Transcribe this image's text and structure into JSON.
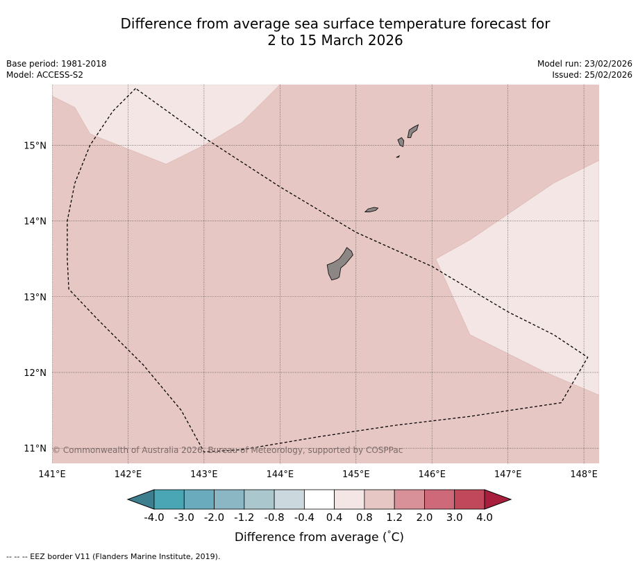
{
  "title": {
    "line1": "Difference from average sea surface temperature forecast for",
    "line2": "2 to 15 March 2026"
  },
  "meta": {
    "base_period": "Base period: 1981-2018",
    "model": "Model: ACCESS-S2",
    "model_run": "Model run: 23/02/2026",
    "issued": "Issued: 25/02/2026"
  },
  "map": {
    "lon_range": [
      141.0,
      148.2
    ],
    "lat_range": [
      10.8,
      15.8
    ],
    "lon_ticks": [
      141,
      142,
      143,
      144,
      145,
      146,
      147,
      148
    ],
    "lon_tick_labels": [
      "141°E",
      "142°E",
      "143°E",
      "144°E",
      "145°E",
      "146°E",
      "147°E",
      "148°E"
    ],
    "lat_ticks": [
      11,
      12,
      13,
      14,
      15
    ],
    "lat_tick_labels": [
      "11°N",
      "12°N",
      "13°N",
      "14°N",
      "15°N"
    ],
    "background_category": "0.8 to 1.2",
    "copyright": "© Commonwealth of Australia 2026, Bureau of Meteorology, supported by COSPPac",
    "regions": [
      {
        "name": "cooler-patch-northwest",
        "category": "0.4 to 0.8",
        "polygon": [
          [
            141.0,
            15.8
          ],
          [
            142.5,
            15.8
          ],
          [
            144.0,
            15.8
          ],
          [
            143.5,
            15.3
          ],
          [
            143.0,
            15.0
          ],
          [
            142.5,
            14.75
          ],
          [
            141.5,
            15.15
          ],
          [
            141.3,
            15.5
          ],
          [
            141.0,
            15.65
          ]
        ]
      },
      {
        "name": "cooler-patch-east",
        "category": "0.4 to 0.8",
        "polygon": [
          [
            148.2,
            14.8
          ],
          [
            147.6,
            14.5
          ],
          [
            146.5,
            13.75
          ],
          [
            146.05,
            13.5
          ],
          [
            146.5,
            12.5
          ],
          [
            147.5,
            12.0
          ],
          [
            148.2,
            11.7
          ]
        ]
      }
    ],
    "islands": [
      {
        "name": "Guam",
        "polygon": [
          [
            144.68,
            13.22
          ],
          [
            144.64,
            13.3
          ],
          [
            144.62,
            13.42
          ],
          [
            144.7,
            13.45
          ],
          [
            144.78,
            13.5
          ],
          [
            144.84,
            13.58
          ],
          [
            144.88,
            13.65
          ],
          [
            144.94,
            13.6
          ],
          [
            144.96,
            13.55
          ],
          [
            144.86,
            13.43
          ],
          [
            144.8,
            13.38
          ],
          [
            144.78,
            13.26
          ],
          [
            144.75,
            13.24
          ]
        ]
      },
      {
        "name": "Rota",
        "polygon": [
          [
            145.12,
            14.12
          ],
          [
            145.16,
            14.16
          ],
          [
            145.24,
            14.18
          ],
          [
            145.29,
            14.17
          ],
          [
            145.26,
            14.14
          ],
          [
            145.18,
            14.12
          ]
        ]
      },
      {
        "name": "Tinian",
        "polygon": [
          [
            145.58,
            15.0
          ],
          [
            145.55,
            15.07
          ],
          [
            145.6,
            15.1
          ],
          [
            145.63,
            15.06
          ],
          [
            145.62,
            14.98
          ]
        ]
      },
      {
        "name": "Saipan",
        "polygon": [
          [
            145.68,
            15.1
          ],
          [
            145.7,
            15.2
          ],
          [
            145.76,
            15.24
          ],
          [
            145.82,
            15.27
          ],
          [
            145.8,
            15.2
          ],
          [
            145.74,
            15.16
          ],
          [
            145.72,
            15.1
          ]
        ]
      },
      {
        "name": "Aguijan",
        "polygon": [
          [
            145.53,
            14.84
          ],
          [
            145.57,
            14.86
          ],
          [
            145.56,
            14.84
          ]
        ]
      }
    ],
    "eez_border": [
      [
        142.1,
        15.75
      ],
      [
        141.8,
        15.45
      ],
      [
        141.5,
        15.0
      ],
      [
        141.3,
        14.5
      ],
      [
        141.2,
        14.0
      ],
      [
        141.2,
        13.5
      ],
      [
        141.22,
        13.1
      ],
      [
        141.6,
        12.7
      ],
      [
        142.2,
        12.1
      ],
      [
        142.7,
        11.5
      ],
      [
        143.0,
        10.95
      ],
      [
        143.5,
        10.98
      ],
      [
        144.5,
        11.15
      ],
      [
        145.5,
        11.3
      ],
      [
        146.5,
        11.42
      ],
      [
        147.7,
        11.6
      ],
      [
        148.05,
        12.2
      ],
      [
        147.6,
        12.5
      ],
      [
        147.0,
        12.8
      ],
      [
        146.0,
        13.4
      ],
      [
        145.0,
        13.85
      ],
      [
        144.0,
        14.45
      ],
      [
        143.0,
        15.1
      ]
    ]
  },
  "colorbar": {
    "colors": [
      "#3e7f8f",
      "#4aa6b5",
      "#6aacbd",
      "#8ab7c3",
      "#a9c7cc",
      "#cbd9de",
      "#ffffff",
      "#f3e6e5",
      "#e7c7c3",
      "#d89199",
      "#cd6979",
      "#c1485a",
      "#a81f3d"
    ],
    "tick_labels": [
      "-4.0",
      "-3.0",
      "-2.0",
      "-1.2",
      "-0.8",
      "-0.4",
      "0.4",
      "0.8",
      "1.2",
      "2.0",
      "3.0",
      "4.0"
    ],
    "label": "Difference from average ( C)",
    "label_degree": "°"
  },
  "footnote": "--  --  -- EEZ border V11 (Flanders Marine Institute, 2019)."
}
